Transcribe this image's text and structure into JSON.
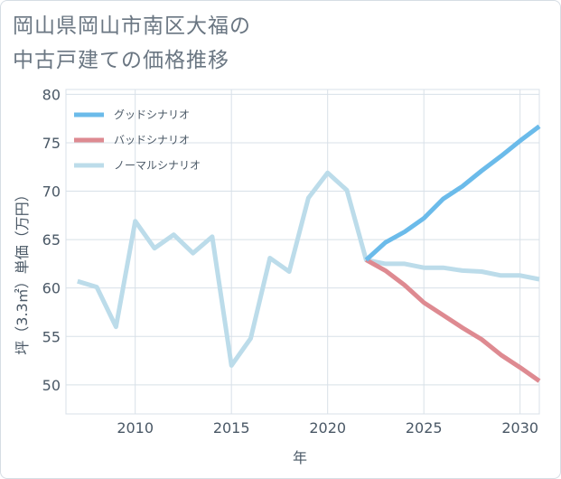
{
  "header": {
    "title_line1": "岡山県岡山市南区大福の",
    "title_line2": "中古戸建ての価格推移"
  },
  "colors": {
    "good": "#6bbbea",
    "bad": "#de8a91",
    "normal": "#bcdcea",
    "grid": "#d8e0e8",
    "axis_text": "#4a5866"
  },
  "chart_data": {
    "type": "line",
    "title": "岡山県岡山市南区大福の中古戸建ての価格推移",
    "xlabel": "年",
    "ylabel": "坪（3.3㎡）単価（万円）",
    "xlim": [
      2006.4,
      2031
    ],
    "ylim": [
      47,
      80.5
    ],
    "x_ticks": [
      2010,
      2015,
      2020,
      2025,
      2030
    ],
    "x_tick_labels": [
      "2010",
      "2015",
      "2020",
      "2025",
      "2030"
    ],
    "y_ticks": [
      50,
      55,
      60,
      65,
      70,
      75,
      80
    ],
    "y_tick_labels": [
      "50",
      "55",
      "60",
      "65",
      "70",
      "75",
      "80"
    ],
    "grid": true,
    "legend_position": "top-left",
    "series": [
      {
        "name": "グッドシナリオ",
        "key": "good",
        "x": [
          2022,
          2023,
          2024,
          2025,
          2026,
          2027,
          2028,
          2029,
          2030,
          2031
        ],
        "values": [
          62.9,
          64.7,
          65.8,
          67.2,
          69.2,
          70.5,
          72.1,
          73.6,
          75.2,
          76.7
        ]
      },
      {
        "name": "バッドシナリオ",
        "key": "bad",
        "x": [
          2022,
          2023,
          2024,
          2025,
          2026,
          2027,
          2028,
          2029,
          2030,
          2031
        ],
        "values": [
          62.9,
          61.8,
          60.3,
          58.5,
          57.2,
          55.9,
          54.7,
          53.1,
          51.8,
          50.4
        ]
      },
      {
        "name": "ノーマルシナリオ",
        "key": "normal",
        "x": [
          2007,
          2008,
          2009,
          2010,
          2011,
          2012,
          2013,
          2014,
          2015,
          2016,
          2017,
          2018,
          2019,
          2020,
          2021,
          2022,
          2023,
          2024,
          2025,
          2026,
          2027,
          2028,
          2029,
          2030,
          2031
        ],
        "values": [
          60.7,
          60.1,
          56.0,
          66.9,
          64.1,
          65.5,
          63.6,
          65.3,
          52.0,
          54.8,
          63.1,
          61.7,
          69.3,
          71.9,
          70.1,
          62.9,
          62.5,
          62.5,
          62.1,
          62.1,
          61.8,
          61.7,
          61.3,
          61.3,
          60.9
        ]
      }
    ]
  }
}
